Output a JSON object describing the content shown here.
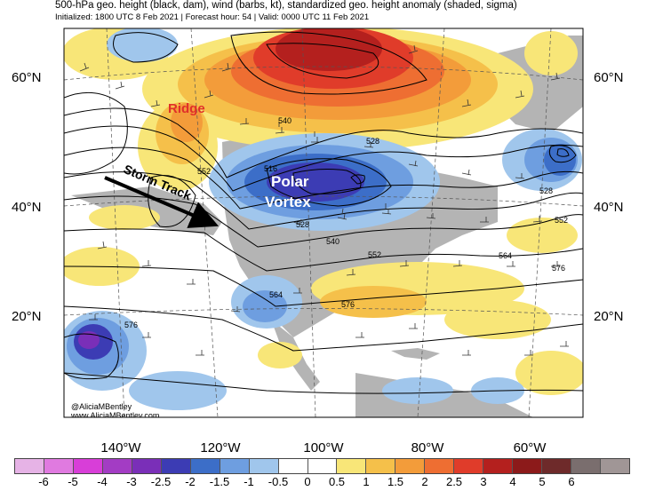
{
  "title": {
    "line1": "500-hPa geo. height (black, dam), wind (barbs, kt), standardized geo. height anomaly (shaded, sigma)",
    "line2": "Initialized: 1800 UTC 8 Feb 2021 | Forecast hour: 54 | Valid: 0000 UTC 11 Feb 2021"
  },
  "lat_labels": [
    "60°N",
    "40°N",
    "20°N"
  ],
  "lon_labels": [
    "140°W",
    "120°W",
    "100°W",
    "80°W",
    "60°W"
  ],
  "annotations": {
    "ridge": "Ridge",
    "polar_vortex_1": "Polar",
    "polar_vortex_2": "Vortex",
    "storm_track": "Storm Track"
  },
  "contour_labels": [
    "540",
    "528",
    "516",
    "552",
    "528",
    "540",
    "552",
    "564",
    "576",
    "528",
    "552",
    "564",
    "576",
    "576"
  ],
  "credit": {
    "handle": "@AliciaMBentley",
    "site": "www.AliciaMBentley.com"
  },
  "colorbar": {
    "colors": [
      "#e6b3e6",
      "#e07ae0",
      "#d83ed8",
      "#a33cc4",
      "#7a2fb8",
      "#3c3cb4",
      "#3c6ec8",
      "#6e9ee0",
      "#a0c6ec",
      "#ffffff",
      "#ffffff",
      "#f8e678",
      "#f5c04a",
      "#f39c3a",
      "#ee6e32",
      "#e03c2a",
      "#b4201e",
      "#8c1a1a",
      "#6e2a2a",
      "#7a6e6e",
      "#a09696"
    ],
    "tick_labels": [
      "-6",
      "-5",
      "-4",
      "-3",
      "-2.5",
      "-2",
      "-1.5",
      "-1",
      "-0.5",
      "0",
      "0.5",
      "1",
      "1.5",
      "2",
      "2.5",
      "3",
      "4",
      "5",
      "6"
    ]
  },
  "colors": {
    "ridge_text": "#e0302a",
    "vortex_text": "#ffffff",
    "land_gray": "#b4b4b4"
  }
}
